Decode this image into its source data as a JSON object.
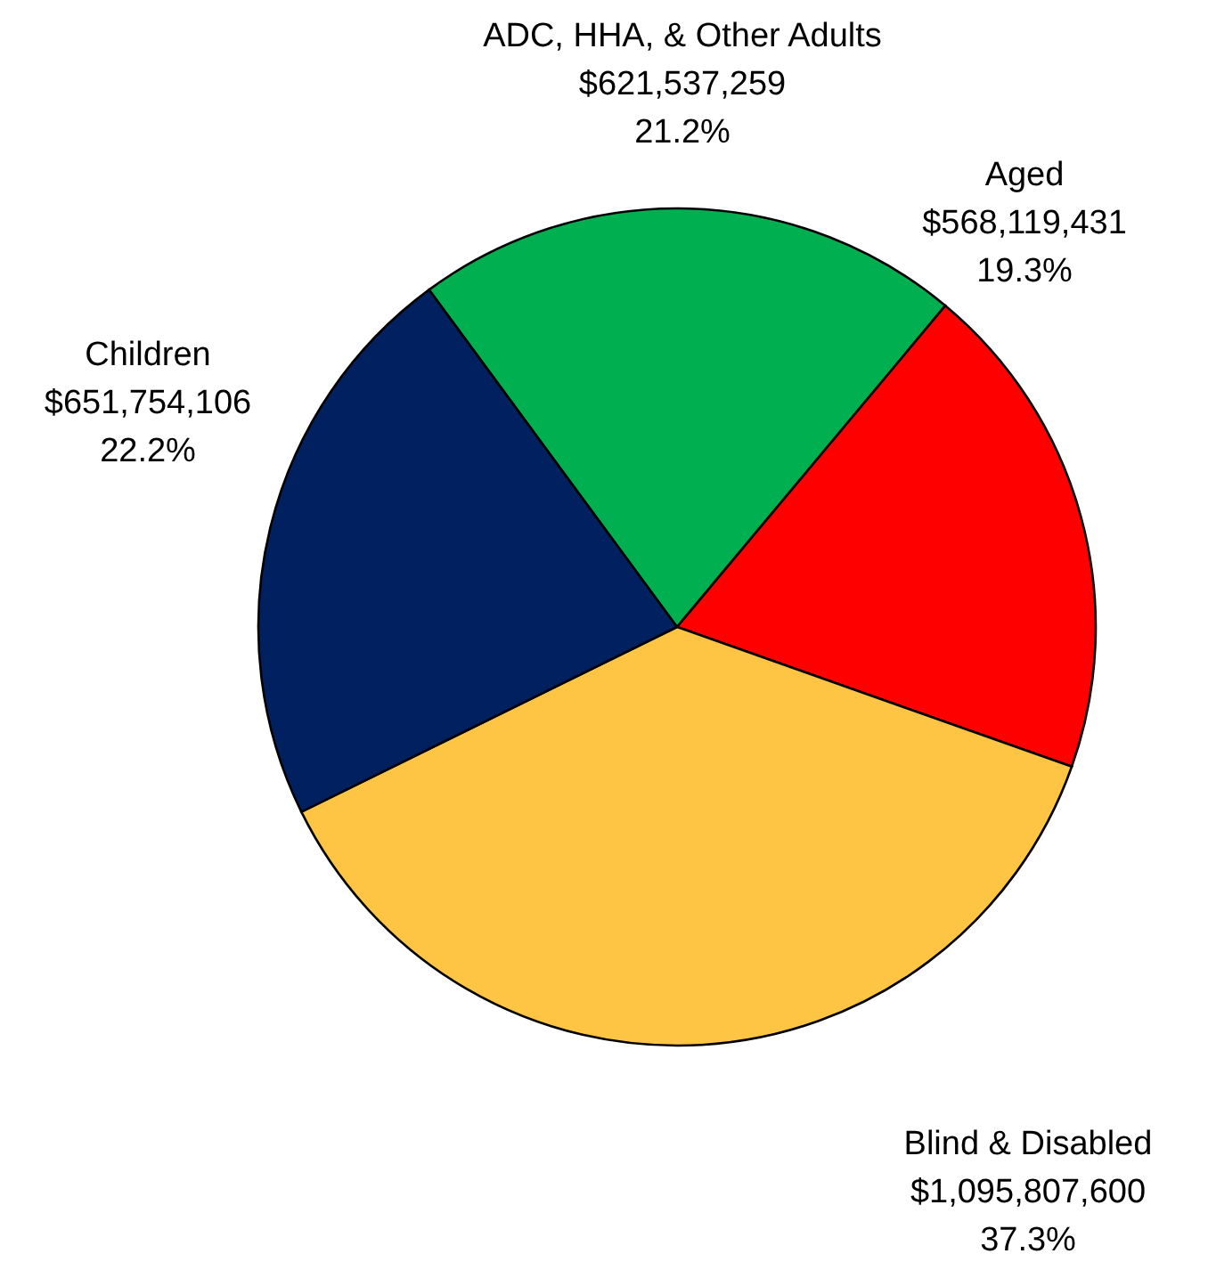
{
  "chart_data": {
    "type": "pie",
    "categories": [
      "ADC, HHA, & Other Adults",
      "Aged",
      "Blind & Disabled",
      "Children"
    ],
    "values": [
      621537259,
      568119431,
      1095807600,
      651754106
    ],
    "value_labels": [
      "$621,537,259\n21.2%",
      "$568,119,431\n19.3%",
      "$1,095,807,600\n37.3%",
      "$651,754,106\n22.2%"
    ],
    "colors": [
      "#00b050",
      "#ff0000",
      "#fdc543",
      "#002060"
    ]
  }
}
